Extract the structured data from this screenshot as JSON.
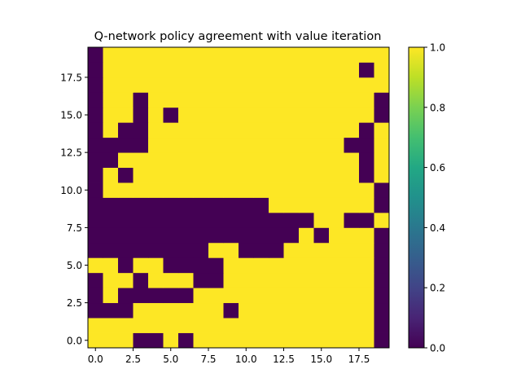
{
  "chart_data": {
    "type": "heatmap",
    "title": "Q-network policy agreement with value iteration",
    "xlabel": "",
    "ylabel": "",
    "x_ticks": [
      "0.0",
      "2.5",
      "5.0",
      "7.5",
      "10.0",
      "12.5",
      "15.0",
      "17.5"
    ],
    "y_ticks": [
      "0.0",
      "2.5",
      "5.0",
      "7.5",
      "10.0",
      "12.5",
      "15.0",
      "17.5"
    ],
    "xlim": [
      -0.5,
      19.5
    ],
    "ylim": [
      -0.5,
      19.5
    ],
    "colorbar_ticks": [
      "0.0",
      "0.2",
      "0.4",
      "0.6",
      "0.8",
      "1.0"
    ],
    "colorbar_range": [
      0,
      1
    ],
    "colormap": "viridis",
    "colors": {
      "low": "#440154",
      "high": "#fde725"
    },
    "grid_rows_bottom_to_top": [
      [
        1,
        1,
        1,
        0,
        0,
        1,
        0,
        1,
        1,
        1,
        1,
        1,
        1,
        1,
        1,
        1,
        1,
        1,
        1,
        0
      ],
      [
        1,
        1,
        1,
        1,
        1,
        1,
        1,
        1,
        1,
        1,
        1,
        1,
        1,
        1,
        1,
        1,
        1,
        1,
        1,
        0
      ],
      [
        0,
        0,
        0,
        1,
        1,
        1,
        1,
        1,
        1,
        0,
        1,
        1,
        1,
        1,
        1,
        1,
        1,
        1,
        1,
        0
      ],
      [
        0,
        1,
        0,
        0,
        0,
        0,
        0,
        1,
        1,
        1,
        1,
        1,
        1,
        1,
        1,
        1,
        1,
        1,
        1,
        0
      ],
      [
        0,
        1,
        1,
        0,
        1,
        1,
        1,
        0,
        0,
        1,
        1,
        1,
        1,
        1,
        1,
        1,
        1,
        1,
        1,
        0
      ],
      [
        1,
        1,
        0,
        1,
        1,
        0,
        0,
        0,
        0,
        1,
        1,
        1,
        1,
        1,
        1,
        1,
        1,
        1,
        1,
        0
      ],
      [
        0,
        0,
        0,
        0,
        0,
        0,
        0,
        0,
        1,
        1,
        0,
        0,
        0,
        1,
        1,
        1,
        1,
        1,
        1,
        0
      ],
      [
        0,
        0,
        0,
        0,
        0,
        0,
        0,
        0,
        0,
        0,
        0,
        0,
        0,
        0,
        1,
        0,
        1,
        1,
        1,
        0
      ],
      [
        0,
        0,
        0,
        0,
        0,
        0,
        0,
        0,
        0,
        0,
        0,
        0,
        0,
        0,
        0,
        1,
        1,
        0,
        0,
        1
      ],
      [
        0,
        0,
        0,
        0,
        0,
        0,
        0,
        0,
        0,
        0,
        0,
        0,
        1,
        1,
        1,
        1,
        1,
        1,
        1,
        0
      ],
      [
        0,
        1,
        1,
        1,
        1,
        1,
        1,
        1,
        1,
        1,
        1,
        1,
        1,
        1,
        1,
        1,
        1,
        1,
        1,
        0
      ],
      [
        0,
        1,
        0,
        1,
        1,
        1,
        1,
        1,
        1,
        1,
        1,
        1,
        1,
        1,
        1,
        1,
        1,
        1,
        0,
        1
      ],
      [
        0,
        0,
        1,
        1,
        1,
        1,
        1,
        1,
        1,
        1,
        1,
        1,
        1,
        1,
        1,
        1,
        1,
        1,
        0,
        1
      ],
      [
        0,
        0,
        0,
        0,
        1,
        1,
        1,
        1,
        1,
        1,
        1,
        1,
        1,
        1,
        1,
        1,
        1,
        0,
        0,
        1
      ],
      [
        0,
        1,
        0,
        0,
        1,
        1,
        1,
        1,
        1,
        1,
        1,
        1,
        1,
        1,
        1,
        1,
        1,
        1,
        0,
        1
      ],
      [
        0,
        1,
        1,
        0,
        1,
        0,
        1,
        1,
        1,
        1,
        1,
        1,
        1,
        1,
        1,
        1,
        1,
        1,
        1,
        0
      ],
      [
        0,
        1,
        1,
        0,
        1,
        1,
        1,
        1,
        1,
        1,
        1,
        1,
        1,
        1,
        1,
        1,
        1,
        1,
        1,
        0
      ],
      [
        0,
        1,
        1,
        1,
        1,
        1,
        1,
        1,
        1,
        1,
        1,
        1,
        1,
        1,
        1,
        1,
        1,
        1,
        1,
        1
      ],
      [
        0,
        1,
        1,
        1,
        1,
        1,
        1,
        1,
        1,
        1,
        1,
        1,
        1,
        1,
        1,
        1,
        1,
        1,
        0,
        1
      ],
      [
        0,
        1,
        1,
        1,
        1,
        1,
        1,
        1,
        1,
        1,
        1,
        1,
        1,
        1,
        1,
        1,
        1,
        1,
        1,
        1
      ]
    ]
  }
}
